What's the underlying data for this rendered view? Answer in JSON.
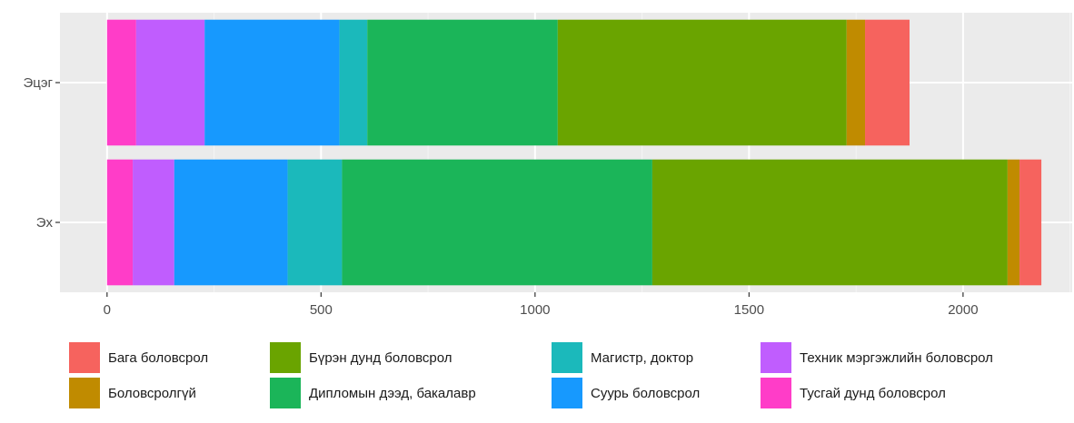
{
  "chart_data": {
    "type": "bar",
    "orientation": "horizontal",
    "stacked": true,
    "categories": [
      "Эцэг",
      "Эх"
    ],
    "category_order": [
      "Эх",
      "Эцэг"
    ],
    "xlim": [
      -110,
      2255
    ],
    "x_ticks": [
      0,
      500,
      1000,
      1500,
      2000
    ],
    "grid": true,
    "legend_position": "bottom",
    "series": [
      {
        "name": "Тусгай дунд боловсрол",
        "color": "#FF3DC8",
        "values": [
          68,
          60
        ]
      },
      {
        "name": "Техник мэргэжлийн боловсрол",
        "color": "#C05DFE",
        "values": [
          160,
          97
        ]
      },
      {
        "name": "Суурь боловсрол",
        "color": "#1799FE",
        "values": [
          315,
          265
        ]
      },
      {
        "name": "Магистр, доктор",
        "color": "#1BB9BB",
        "values": [
          65,
          127
        ]
      },
      {
        "name": "Дипломын дээд, бакалавр",
        "color": "#1BB559",
        "values": [
          445,
          725
        ]
      },
      {
        "name": "Бүрэн дунд боловсрол",
        "color": "#6AA400",
        "values": [
          675,
          830
        ]
      },
      {
        "name": "Боловсролгүй",
        "color": "#C08B00",
        "values": [
          43,
          28
        ]
      },
      {
        "name": "Бага боловсрол",
        "color": "#F6635E",
        "values": [
          104,
          51
        ]
      }
    ],
    "legend": [
      [
        "Бага боловсрол",
        "Боловсролгүй"
      ],
      [
        "Бүрэн дунд боловсрол",
        "Дипломын дээд, бакалавр"
      ],
      [
        "Магистр, доктор",
        "Суурь боловсрол"
      ],
      [
        "Техник мэргэжлийн боловсрол",
        "Тусгай дунд боловсрол"
      ]
    ],
    "colors": {
      "panel": "#EBEBEB",
      "grid_major": "#FFFFFF",
      "grid_minor": "#F5F5F5",
      "tick": "#333333",
      "tick_text": "#4D4D4D"
    }
  }
}
